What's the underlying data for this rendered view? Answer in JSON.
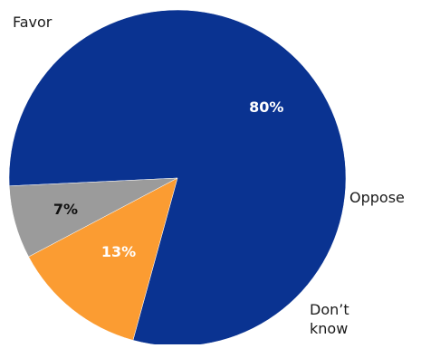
{
  "chart_data": {
    "type": "pie",
    "slices": [
      {
        "label": "Favor",
        "value": 80,
        "value_label": "80%",
        "color": "#0a3391",
        "value_label_color": "#ffffff"
      },
      {
        "label": "Oppose",
        "value": 13,
        "value_label": "13%",
        "color": "#fb9c32",
        "value_label_color": "#ffffff"
      },
      {
        "label": "Don't know",
        "label_lines": [
          "Don’t",
          "know"
        ],
        "value": 7,
        "value_label": "7%",
        "color": "#9b9b9b",
        "value_label_color": "#111111"
      }
    ]
  }
}
